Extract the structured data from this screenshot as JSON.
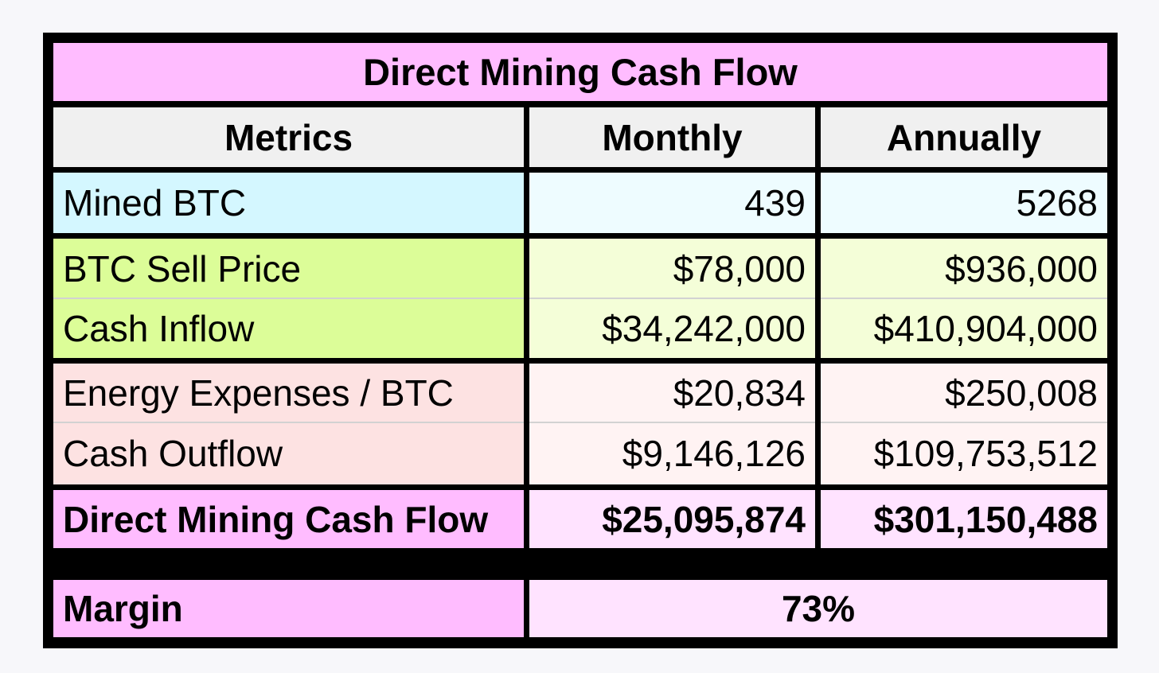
{
  "title": "Direct Mining Cash Flow",
  "headers": [
    "Metrics",
    "Monthly",
    "Annually"
  ],
  "rows": [
    {
      "metric": "Mined BTC",
      "monthly": "439",
      "annually": "5268"
    },
    {
      "metric": "BTC Sell Price",
      "monthly": "$78,000",
      "annually": "$936,000"
    },
    {
      "metric": "Cash Inflow",
      "monthly": "$34,242,000",
      "annually": "$410,904,000"
    },
    {
      "metric": "Energy Expenses / BTC",
      "monthly": "$20,834",
      "annually": "$250,008"
    },
    {
      "metric": "Cash Outflow",
      "monthly": "$9,146,126",
      "annually": "$109,753,512"
    },
    {
      "metric": "Direct Mining Cash Flow",
      "monthly": "$25,095,874",
      "annually": "$301,150,488"
    }
  ],
  "margin": {
    "label": "Margin",
    "value": "73%"
  },
  "colors": {
    "title_bg": "#ffbcff",
    "header_bg": "#f0f0f0",
    "mined_label_bg": "#d4f7ff",
    "mined_value_bg": "#eefcff",
    "inflow_label_bg": "#dcfd98",
    "inflow_value_bg": "#f4fed8",
    "outflow_label_bg": "#fde2e2",
    "outflow_value_bg": "#fff3f3",
    "cashflow_label_bg": "#ffbcff",
    "cashflow_value_bg": "#ffe3ff",
    "border": "#000000"
  }
}
